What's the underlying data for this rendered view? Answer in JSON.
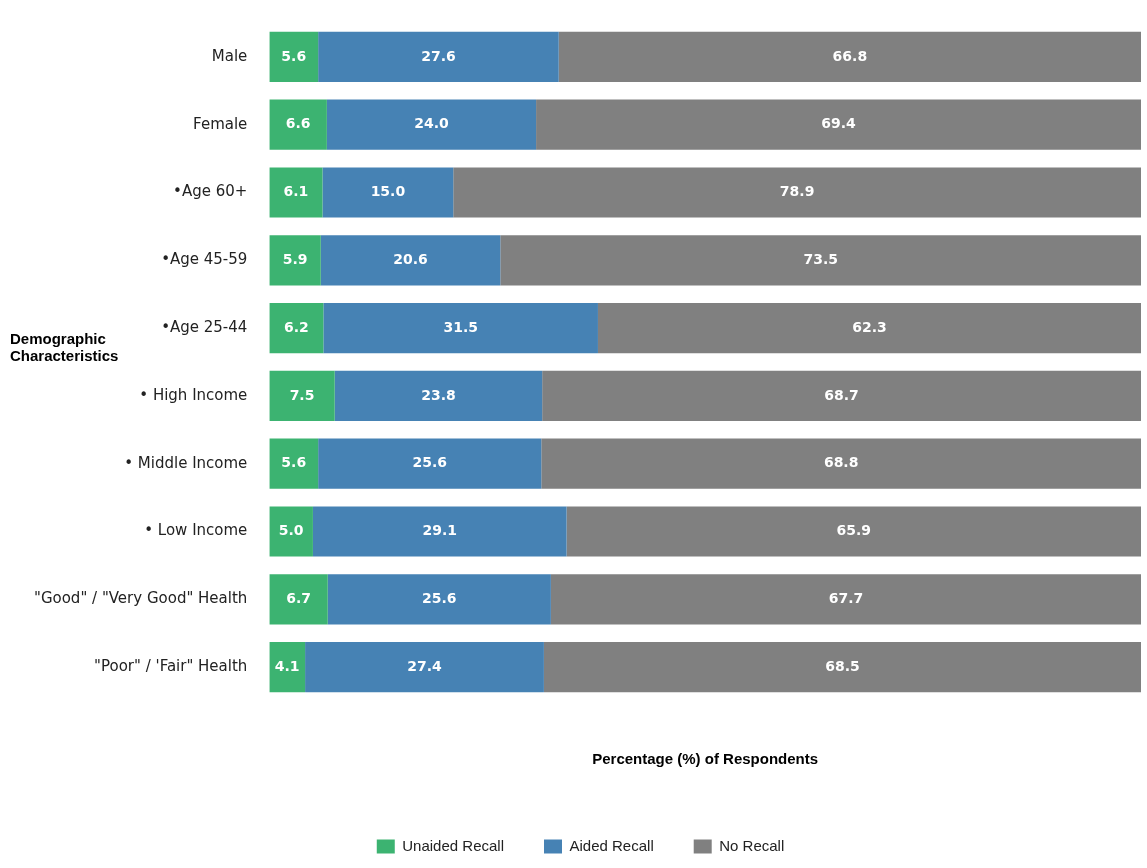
{
  "chart_data": {
    "type": "bar",
    "orientation": "horizontal",
    "stacked": true,
    "ylabel": "Demographic Characteristics",
    "xlabel": "Percentage (%) of Respondents",
    "categories": [
      "Male",
      "Female",
      "•Age 60+",
      "•Age 45-59",
      "•Age 25-44",
      "• High Income",
      "• Middle Income",
      "• Low Income",
      "\"Good\" / \"Very Good\" Health",
      "\"Poor\" / 'Fair\" Health"
    ],
    "series": [
      {
        "name": "Unaided Recall",
        "color": "#3cb371",
        "values": [
          5.6,
          6.6,
          6.1,
          5.9,
          6.2,
          7.5,
          5.6,
          5.0,
          6.7,
          4.1
        ],
        "value_labels": [
          "5.6",
          "6.6",
          "6.1",
          "5.9",
          "6.2",
          "7.5",
          "5.6",
          "5.0",
          "6.7",
          "4.1"
        ]
      },
      {
        "name": "Aided Recall",
        "color": "#4682b4",
        "values": [
          27.6,
          24.0,
          15.0,
          20.6,
          31.5,
          23.8,
          25.6,
          29.1,
          25.6,
          27.4
        ],
        "value_labels": [
          "27.6",
          "24.0",
          "15.0",
          "20.6",
          "31.5",
          "23.8",
          "25.6",
          "29.1",
          "25.6",
          "27.4"
        ]
      },
      {
        "name": "No Recall",
        "color": "#808080",
        "values": [
          66.8,
          69.4,
          78.9,
          73.5,
          62.3,
          68.7,
          68.8,
          65.9,
          67.7,
          68.5
        ],
        "value_labels": [
          "66.8",
          "69.4",
          "78.9",
          "73.5",
          "62.3",
          "68.7",
          "68.8",
          "65.9",
          "67.7",
          "68.5"
        ]
      }
    ],
    "xlim": [
      0,
      100
    ],
    "tick_labels": "y",
    "grid": false,
    "legend": "bottom"
  }
}
